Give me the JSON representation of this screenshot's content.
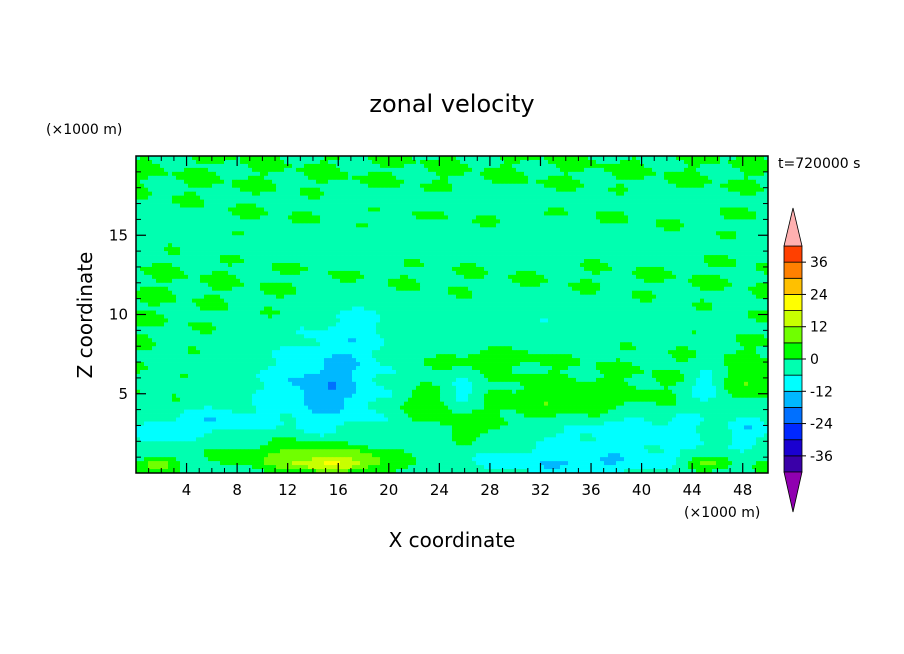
{
  "chart_data": {
    "type": "heatmap",
    "title": "zonal velocity",
    "time_label": "t=720000 s",
    "xlabel": "X coordinate",
    "ylabel": "Z coordinate",
    "x_unit": "(×1000 m)",
    "y_unit": "(×1000 m)",
    "xlim": [
      0,
      50
    ],
    "ylim": [
      0,
      20
    ],
    "x_ticks": [
      4,
      8,
      12,
      16,
      20,
      24,
      28,
      32,
      36,
      40,
      44,
      48
    ],
    "y_ticks": [
      5,
      10,
      15
    ],
    "colorbar": {
      "ticks": [
        36,
        24,
        12,
        0,
        -12,
        -24,
        -36
      ],
      "levels": [
        -42,
        -36,
        -30,
        -24,
        -18,
        -12,
        -6,
        0,
        6,
        12,
        18,
        24,
        30,
        36,
        42
      ],
      "colors": [
        "#3a00a8",
        "#1a00d0",
        "#0028ff",
        "#0070ff",
        "#00b8ff",
        "#00ffff",
        "#00ffb0",
        "#00ff00",
        "#70ff00",
        "#c8ff00",
        "#ffff00",
        "#ffc000",
        "#ff8000",
        "#ff4000",
        "#ff0000"
      ],
      "under_color": "#9000b0",
      "over_color": "#ffb0b0"
    },
    "field": {
      "background": 0,
      "features": [
        {
          "x": 25,
          "z": 1.8,
          "rx": 26,
          "rz": 1.4,
          "value": -6
        },
        {
          "x": 13,
          "z": 5.5,
          "rx": 9,
          "rz": 3.5,
          "value": -6
        },
        {
          "x": 15,
          "z": 5.2,
          "rx": 3.5,
          "rz": 2,
          "value": -10
        },
        {
          "x": 17,
          "z": 8.5,
          "rx": 3,
          "rz": 2.5,
          "value": -6
        },
        {
          "x": 13,
          "z": 1.8,
          "rx": 8,
          "rz": 1,
          "value": 6
        },
        {
          "x": 15,
          "z": 1.1,
          "rx": 6,
          "rz": 0.6,
          "value": 12
        },
        {
          "x": 15.5,
          "z": 0.5,
          "rx": 4,
          "rz": 0.4,
          "value": 16
        },
        {
          "x": 2,
          "z": 0.6,
          "rx": 1.5,
          "rz": 0.4,
          "value": 10
        },
        {
          "x": 45,
          "z": 0.6,
          "rx": 2,
          "rz": 0.4,
          "value": 10
        },
        {
          "x": 35,
          "z": 4.5,
          "rx": 6,
          "rz": 1.1,
          "value": 6
        },
        {
          "x": 26,
          "z": 2.6,
          "rx": 4,
          "rz": 1.2,
          "value": 6
        },
        {
          "x": 23,
          "z": 4.3,
          "rx": 2,
          "rz": 0.9,
          "value": 6
        },
        {
          "x": 28,
          "z": 7.2,
          "rx": 4,
          "rz": 0.5,
          "value": 5
        },
        {
          "x": 48.5,
          "z": 6,
          "rx": 1.5,
          "rz": 1.2,
          "value": 6
        },
        {
          "x": 26,
          "z": 5,
          "rx": 1.5,
          "rz": 1,
          "value": -8
        },
        {
          "x": 45,
          "z": 5.5,
          "rx": 1.5,
          "rz": 1.2,
          "value": -8
        },
        {
          "x": 2,
          "z": 2.5,
          "rx": 2,
          "rz": 1,
          "value": -8
        },
        {
          "x": 48.5,
          "z": 2.8,
          "rx": 1.5,
          "rz": 1,
          "value": -8
        },
        {
          "x": 6,
          "z": 3.3,
          "rx": 3,
          "rz": 0.8,
          "value": -8
        },
        {
          "x": 35,
          "z": 0.6,
          "rx": 8,
          "rz": 0.7,
          "value": -10
        },
        {
          "x": 40,
          "z": 3,
          "rx": 6,
          "rz": 1.5,
          "value": -7
        },
        {
          "x": 32,
          "z": 9.5,
          "rx": 16,
          "rz": 1.8,
          "value": -4
        },
        {
          "x": 25,
          "z": 14.5,
          "rx": 25,
          "rz": 1.2,
          "value": -4
        },
        {
          "x": 30,
          "z": 17.2,
          "rx": 20,
          "rz": 0.6,
          "value": -4
        },
        {
          "x": 3,
          "z": 15.8,
          "rx": 3,
          "rz": 0.6,
          "value": -4
        }
      ]
    }
  }
}
